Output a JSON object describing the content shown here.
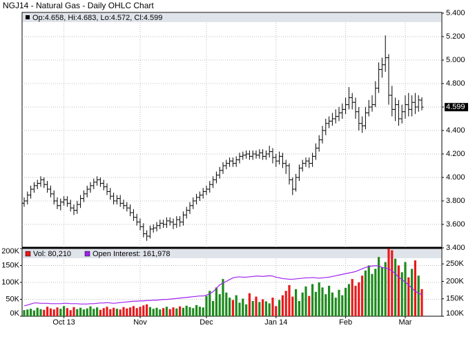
{
  "chart_data": [
    {
      "type": "ohlc",
      "title": "NGJ14 - Natural Gas - Daily OHLC Chart",
      "legend_text": "Op:4.658, Hi:4.683, Lo:4.572, Cl:4.599",
      "color": "#000000",
      "open": [
        3.78,
        3.8,
        3.85,
        3.9,
        3.93,
        3.95,
        3.98,
        3.94,
        3.9,
        3.86,
        3.8,
        3.76,
        3.79,
        3.81,
        3.78,
        3.74,
        3.72,
        3.77,
        3.82,
        3.86,
        3.9,
        3.93,
        3.96,
        3.98,
        3.95,
        3.92,
        3.88,
        3.84,
        3.8,
        3.82,
        3.78,
        3.76,
        3.74,
        3.7,
        3.66,
        3.62,
        3.58,
        3.52,
        3.5,
        3.56,
        3.57,
        3.59,
        3.61,
        3.6,
        3.63,
        3.62,
        3.6,
        3.64,
        3.62,
        3.68,
        3.72,
        3.76,
        3.8,
        3.83,
        3.85,
        3.88,
        3.9,
        3.94,
        3.98,
        4.02,
        4.06,
        4.1,
        4.12,
        4.14,
        4.12,
        4.15,
        4.18,
        4.19,
        4.2,
        4.18,
        4.2,
        4.19,
        4.21,
        4.18,
        4.2,
        4.22,
        4.17,
        4.14,
        4.18,
        4.12,
        4.1,
        3.98,
        3.9,
        4.0,
        4.08,
        4.12,
        4.14,
        4.12,
        4.18,
        4.25,
        4.32,
        4.4,
        4.46,
        4.48,
        4.5,
        4.52,
        4.55,
        4.58,
        4.62,
        4.68,
        4.64,
        4.56,
        4.46,
        4.44,
        4.55,
        4.6,
        4.62,
        4.76,
        4.92,
        4.96,
        5.02,
        4.7,
        4.58,
        4.62,
        4.5,
        4.56,
        4.62,
        4.58,
        4.64,
        4.6,
        4.658
      ],
      "high": [
        3.83,
        3.88,
        3.93,
        3.96,
        3.98,
        4.01,
        4.0,
        3.97,
        3.93,
        3.89,
        3.83,
        3.82,
        3.84,
        3.84,
        3.81,
        3.77,
        3.8,
        3.85,
        3.89,
        3.93,
        3.96,
        3.99,
        4.01,
        4.0,
        3.98,
        3.95,
        3.91,
        3.87,
        3.85,
        3.85,
        3.81,
        3.79,
        3.77,
        3.73,
        3.69,
        3.65,
        3.61,
        3.55,
        3.59,
        3.6,
        3.62,
        3.64,
        3.64,
        3.66,
        3.66,
        3.65,
        3.67,
        3.67,
        3.71,
        3.75,
        3.79,
        3.83,
        3.86,
        3.88,
        3.91,
        3.93,
        3.97,
        4.01,
        4.05,
        4.09,
        4.13,
        4.15,
        4.17,
        4.17,
        4.18,
        4.21,
        4.22,
        4.23,
        4.23,
        4.23,
        4.23,
        4.24,
        4.24,
        4.23,
        4.27,
        4.25,
        4.2,
        4.22,
        4.21,
        4.15,
        4.12,
        4.0,
        4.03,
        4.11,
        4.15,
        4.17,
        4.17,
        4.21,
        4.29,
        4.36,
        4.44,
        4.5,
        4.52,
        4.55,
        4.58,
        4.6,
        4.63,
        4.68,
        4.77,
        4.72,
        4.68,
        4.6,
        4.52,
        4.6,
        4.66,
        4.7,
        4.82,
        4.98,
        5.02,
        5.21,
        5.05,
        4.78,
        4.68,
        4.66,
        4.62,
        4.7,
        4.72,
        4.7,
        4.72,
        4.7,
        4.683
      ],
      "low": [
        3.75,
        3.77,
        3.82,
        3.87,
        3.9,
        3.92,
        3.91,
        3.87,
        3.83,
        3.77,
        3.73,
        3.72,
        3.76,
        3.75,
        3.71,
        3.68,
        3.69,
        3.74,
        3.79,
        3.83,
        3.87,
        3.9,
        3.93,
        3.92,
        3.89,
        3.85,
        3.81,
        3.77,
        3.77,
        3.75,
        3.73,
        3.71,
        3.67,
        3.63,
        3.59,
        3.55,
        3.49,
        3.46,
        3.48,
        3.53,
        3.54,
        3.56,
        3.57,
        3.57,
        3.59,
        3.56,
        3.57,
        3.58,
        3.59,
        3.65,
        3.69,
        3.73,
        3.77,
        3.8,
        3.82,
        3.85,
        3.87,
        3.91,
        3.95,
        3.99,
        4.03,
        4.07,
        4.09,
        4.09,
        4.09,
        4.12,
        4.15,
        4.16,
        4.15,
        4.15,
        4.16,
        4.16,
        4.15,
        4.15,
        4.17,
        4.12,
        4.09,
        4.11,
        4.08,
        4.03,
        3.94,
        3.85,
        3.88,
        3.97,
        4.05,
        4.09,
        4.08,
        4.09,
        4.15,
        4.22,
        4.29,
        4.36,
        4.42,
        4.44,
        4.46,
        4.48,
        4.5,
        4.54,
        4.58,
        4.58,
        4.5,
        4.4,
        4.38,
        4.41,
        4.52,
        4.56,
        4.6,
        4.72,
        4.85,
        4.9,
        4.62,
        4.52,
        4.48,
        4.44,
        4.46,
        4.5,
        4.52,
        4.52,
        4.54,
        4.56,
        4.572
      ],
      "close": [
        3.8,
        3.85,
        3.9,
        3.93,
        3.95,
        3.98,
        3.94,
        3.9,
        3.86,
        3.8,
        3.76,
        3.79,
        3.81,
        3.78,
        3.74,
        3.72,
        3.77,
        3.82,
        3.86,
        3.9,
        3.93,
        3.96,
        3.98,
        3.95,
        3.92,
        3.88,
        3.84,
        3.8,
        3.82,
        3.78,
        3.76,
        3.74,
        3.7,
        3.66,
        3.62,
        3.58,
        3.52,
        3.5,
        3.56,
        3.57,
        3.59,
        3.61,
        3.6,
        3.63,
        3.62,
        3.6,
        3.64,
        3.62,
        3.68,
        3.72,
        3.76,
        3.8,
        3.83,
        3.85,
        3.88,
        3.9,
        3.94,
        3.98,
        4.02,
        4.06,
        4.1,
        4.12,
        4.14,
        4.12,
        4.15,
        4.18,
        4.19,
        4.2,
        4.18,
        4.2,
        4.19,
        4.21,
        4.18,
        4.2,
        4.22,
        4.17,
        4.14,
        4.18,
        4.12,
        4.1,
        3.98,
        3.9,
        4.0,
        4.08,
        4.12,
        4.14,
        4.12,
        4.18,
        4.25,
        4.32,
        4.4,
        4.46,
        4.48,
        4.5,
        4.52,
        4.55,
        4.58,
        4.62,
        4.68,
        4.64,
        4.56,
        4.46,
        4.44,
        4.55,
        4.6,
        4.62,
        4.76,
        4.92,
        4.96,
        5.02,
        4.7,
        4.58,
        4.62,
        4.5,
        4.56,
        4.62,
        4.58,
        4.64,
        4.6,
        4.66,
        4.599
      ],
      "ylim": [
        3.4,
        5.4
      ],
      "yticks": [
        {
          "value": 3.4,
          "label": "3.400"
        },
        {
          "value": 3.6,
          "label": "3.600"
        },
        {
          "value": 3.8,
          "label": "3.800"
        },
        {
          "value": 4.0,
          "label": "4.000"
        },
        {
          "value": 4.2,
          "label": "4.200"
        },
        {
          "value": 4.4,
          "label": "4.400"
        },
        {
          "value": 4.6,
          "label": "4.600"
        },
        {
          "value": 4.8,
          "label": "4.800"
        },
        {
          "value": 5.0,
          "label": "5.000"
        },
        {
          "value": 5.2,
          "label": "5.200"
        },
        {
          "value": 5.4,
          "label": "5.400"
        }
      ],
      "grid": true
    },
    {
      "type": "bar",
      "categories": [
        null,
        null,
        null,
        null,
        null,
        null,
        null,
        null,
        null,
        null,
        null,
        null,
        "Oct 13",
        null,
        null,
        null,
        null,
        null,
        null,
        null,
        null,
        null,
        null,
        null,
        null,
        null,
        null,
        null,
        null,
        null,
        null,
        null,
        null,
        null,
        null,
        "Nov",
        null,
        null,
        null,
        null,
        null,
        null,
        null,
        null,
        null,
        null,
        null,
        null,
        null,
        null,
        null,
        null,
        null,
        null,
        null,
        "Dec",
        null,
        null,
        null,
        null,
        null,
        null,
        null,
        null,
        null,
        null,
        null,
        null,
        null,
        null,
        null,
        null,
        null,
        null,
        null,
        null,
        "Jan 14",
        null,
        null,
        null,
        null,
        null,
        null,
        null,
        null,
        null,
        null,
        null,
        null,
        null,
        null,
        null,
        null,
        null,
        null,
        null,
        null,
        "Feb",
        null,
        null,
        null,
        null,
        null,
        null,
        null,
        null,
        null,
        null,
        null,
        null,
        null,
        null,
        null,
        null,
        null,
        "Mar",
        null,
        null,
        null,
        null,
        null
      ],
      "up_color": "#1e8a1e",
      "down_color": "#e8191b",
      "series": [
        {
          "name": "Vol: 80,210",
          "color": "#e8191b",
          "values": [
            18000,
            20000,
            22000,
            17000,
            25000,
            21000,
            19000,
            28000,
            23000,
            20000,
            26000,
            22000,
            30000,
            24000,
            18000,
            27000,
            21000,
            25000,
            20000,
            23000,
            29000,
            22000,
            26000,
            19000,
            24000,
            28000,
            21000,
            25000,
            22000,
            20000,
            27000,
            23000,
            26000,
            30000,
            24000,
            28000,
            32000,
            35000,
            27000,
            22000,
            25000,
            20000,
            24000,
            28000,
            21000,
            26000,
            23000,
            29000,
            25000,
            31000,
            27000,
            24000,
            33000,
            28000,
            26000,
            60000,
            75000,
            45000,
            85000,
            65000,
            110000,
            70000,
            55000,
            48000,
            62000,
            40000,
            52000,
            35000,
            68000,
            45000,
            58000,
            42000,
            50000,
            44000,
            38000,
            55000,
            30000,
            48000,
            62000,
            75000,
            92000,
            58000,
            80000,
            45000,
            70000,
            88000,
            60000,
            95000,
            72000,
            100000,
            85000,
            65000,
            90000,
            70000,
            55000,
            78000,
            62000,
            84000,
            95000,
            110000,
            90000,
            100000,
            120000,
            135000,
            150000,
            125000,
            140000,
            175000,
            145000,
            160000,
            205000,
            195000,
            170000,
            150000,
            130000,
            160000,
            115000,
            140000,
            165000,
            120000,
            80210
          ]
        },
        {
          "name": "Open Interest: 161,978",
          "color": "#a020f0",
          "axis": "y2",
          "values": [
            130000,
            132000,
            135000,
            138000,
            138000,
            137000,
            137000,
            137000,
            136000,
            136000,
            136000,
            136000,
            137000,
            137000,
            136000,
            136000,
            136000,
            135000,
            135000,
            135000,
            136000,
            136000,
            137000,
            138000,
            138000,
            139000,
            138000,
            137000,
            138000,
            139000,
            140000,
            141000,
            142000,
            143000,
            143000,
            144000,
            144000,
            145000,
            145000,
            146000,
            146000,
            147000,
            148000,
            148000,
            149000,
            150000,
            151000,
            152000,
            153000,
            154000,
            155000,
            156000,
            157000,
            158000,
            158000,
            160000,
            165000,
            170000,
            180000,
            190000,
            195000,
            200000,
            205000,
            210000,
            212000,
            213000,
            212000,
            212000,
            213000,
            214000,
            215000,
            215000,
            214000,
            215000,
            216000,
            215000,
            212000,
            210000,
            208000,
            207000,
            206000,
            206000,
            207000,
            208000,
            209000,
            210000,
            210000,
            211000,
            210000,
            209000,
            210000,
            211000,
            212000,
            214000,
            216000,
            218000,
            220000,
            222000,
            224000,
            226000,
            228000,
            232000,
            236000,
            240000,
            242000,
            244000,
            245000,
            244000,
            240000,
            238000,
            236000,
            230000,
            222000,
            212000,
            205000,
            198000,
            190000,
            180000,
            172000,
            166000,
            161978
          ]
        }
      ],
      "ylim": [
        0,
        200000
      ],
      "yticks": [
        {
          "value": 0,
          "label": "0K"
        },
        {
          "value": 50000,
          "label": "50K"
        },
        {
          "value": 100000,
          "label": "100K"
        },
        {
          "value": 150000,
          "label": "150K"
        },
        {
          "value": 200000,
          "label": "200K"
        }
      ],
      "y2lim": [
        100000,
        294000
      ],
      "y2ticks": [
        {
          "value": 100000,
          "label": "100K"
        },
        {
          "value": 150000,
          "label": "150K"
        },
        {
          "value": 200000,
          "label": "200K"
        },
        {
          "value": 250000,
          "label": "250K"
        }
      ],
      "grid": true
    }
  ]
}
